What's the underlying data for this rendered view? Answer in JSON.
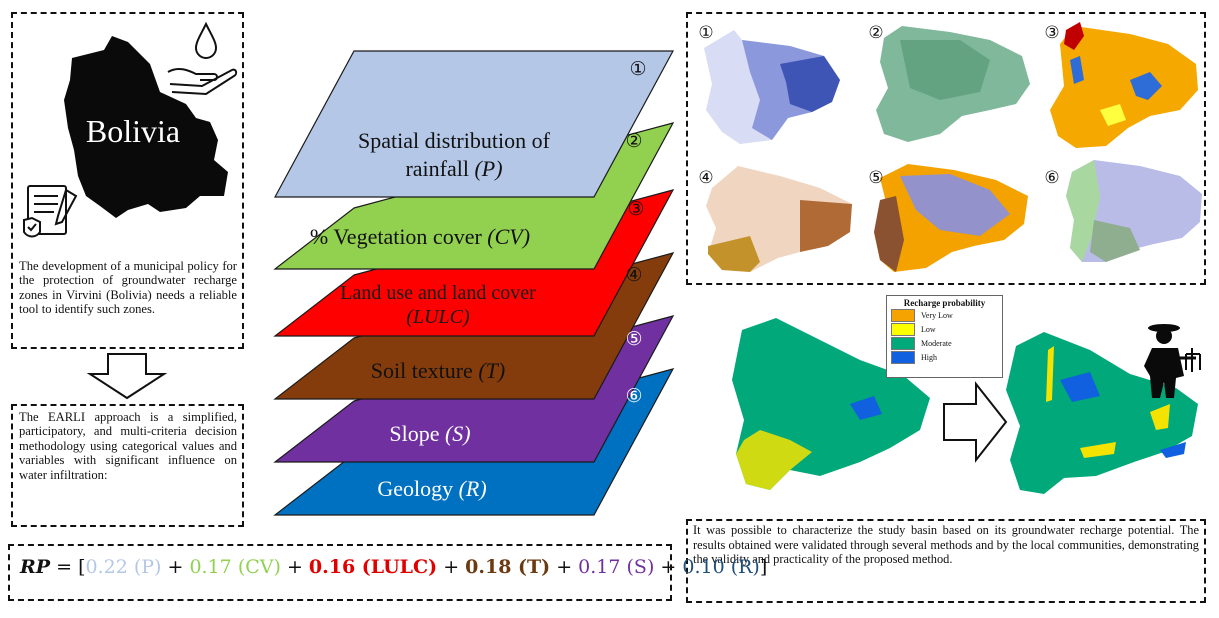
{
  "country": {
    "name": "Bolivia"
  },
  "bolivia_text": "The development of a municipal policy for the protection of groundwater recharge zones in Virvini (Bolivia) needs a reliable tool to identify such zones.",
  "earli_text": "The EARLI approach is a simplified, participatory, and multi-criteria decision methodology using categorical values and variables with significant influence on water infiltration:",
  "conclusion_text": "It was possible to characterize the study basin based on its groundwater recharge potential. The results obtained were validated through several methods and by the local communities, demonstrating the validity and practicality of the proposed method.",
  "layers": [
    {
      "num": "①",
      "line1": "Spatial distribution of",
      "line2": "rainfall ",
      "var": "(P)",
      "fill": "#b4c7e7",
      "text_color": "#111111",
      "var_color": "#111111"
    },
    {
      "num": "②",
      "line1": "% Vegetation cover ",
      "line2": "",
      "var": "(CV)",
      "fill": "#92d050",
      "text_color": "#111111",
      "var_color": "#111111"
    },
    {
      "num": "③",
      "line1": "Land use and land cover",
      "line2": "",
      "var": "(LULC)",
      "fill": "#ff0000",
      "text_color": "#1a1a1a",
      "var_color": "#1a1a1a"
    },
    {
      "num": "④",
      "line1": "Soil texture ",
      "line2": "",
      "var": "(T)",
      "fill": "#843c0c",
      "text_color": "#111111",
      "var_color": "#111111"
    },
    {
      "num": "⑤",
      "line1": "Slope ",
      "line2": "",
      "var": "(S)",
      "fill": "#7030a0",
      "text_color": "#ffffff",
      "var_color": "#ffffff"
    },
    {
      "num": "⑥",
      "line1": "Geology ",
      "line2": "",
      "var": "(R)",
      "fill": "#0070c0",
      "text_color": "#ffffff",
      "var_color": "#ffffff"
    }
  ],
  "equation": {
    "lhs": "RP",
    "eq": " = ",
    "open": "[",
    "close": "]",
    "terms": [
      {
        "coef": "0.22",
        "var": "(P)",
        "color": "#b4c7e7",
        "bold": false,
        "sep": ""
      },
      {
        "coef": "0.17",
        "var": "(CV)",
        "color": "#92d050",
        "bold": false,
        "sep": " + "
      },
      {
        "coef": "0.16",
        "var": "(LULC)",
        "color": "#e00000",
        "bold": true,
        "sep": " + "
      },
      {
        "coef": "0.18",
        "var": "(T)",
        "color": "#6b3a10",
        "bold": true,
        "sep": " + "
      },
      {
        "coef": "0.17",
        "var": "(S)",
        "color": "#7030a0",
        "bold": false,
        "sep": " + "
      },
      {
        "coef": "0.10",
        "var": "(R)",
        "color": "#1f4e79",
        "bold": false,
        "sep": " + "
      }
    ]
  },
  "map_labels": [
    "①",
    "②",
    "③",
    "④",
    "⑤",
    "⑥"
  ],
  "legend": {
    "title": "Recharge probability",
    "items": [
      {
        "label": "Very Low",
        "color": "#f4a300"
      },
      {
        "label": "Low",
        "color": "#ffff00"
      },
      {
        "label": "Moderate",
        "color": "#00a87a"
      },
      {
        "label": "High",
        "color": "#1060e0"
      }
    ]
  }
}
